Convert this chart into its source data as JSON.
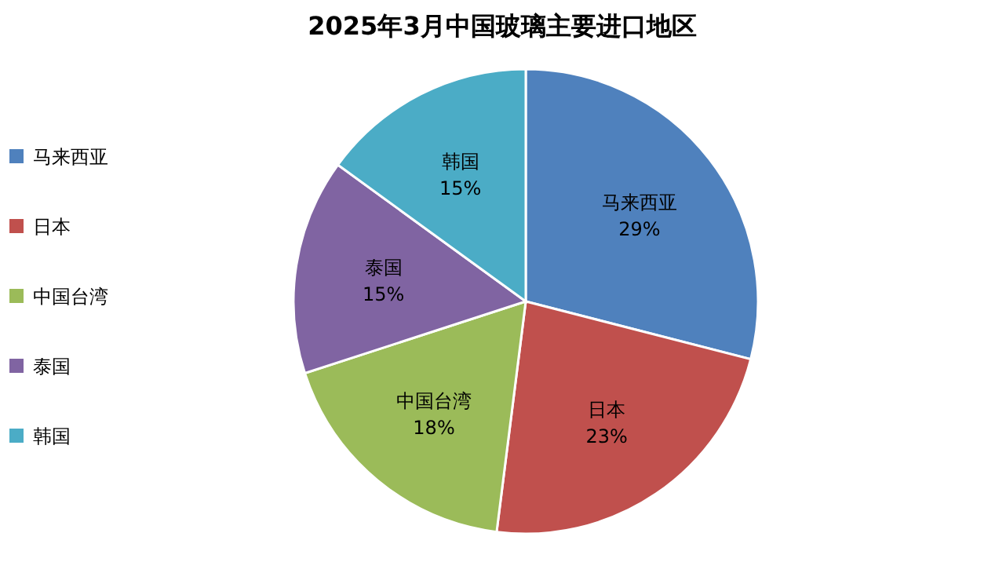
{
  "chart_data": {
    "type": "pie",
    "title": "2025年3月中国玻璃主要进口地区",
    "categories": [
      "马来西亚",
      "日本",
      "中国台湾",
      "泰国",
      "韩国"
    ],
    "values": [
      29,
      23,
      18,
      15,
      15
    ],
    "value_labels": [
      "29%",
      "23%",
      "18%",
      "15%",
      "15%"
    ],
    "colors": [
      "#4f81bd",
      "#c0504d",
      "#9bbb59",
      "#8064a2",
      "#4bacc6"
    ],
    "legend": "left"
  }
}
